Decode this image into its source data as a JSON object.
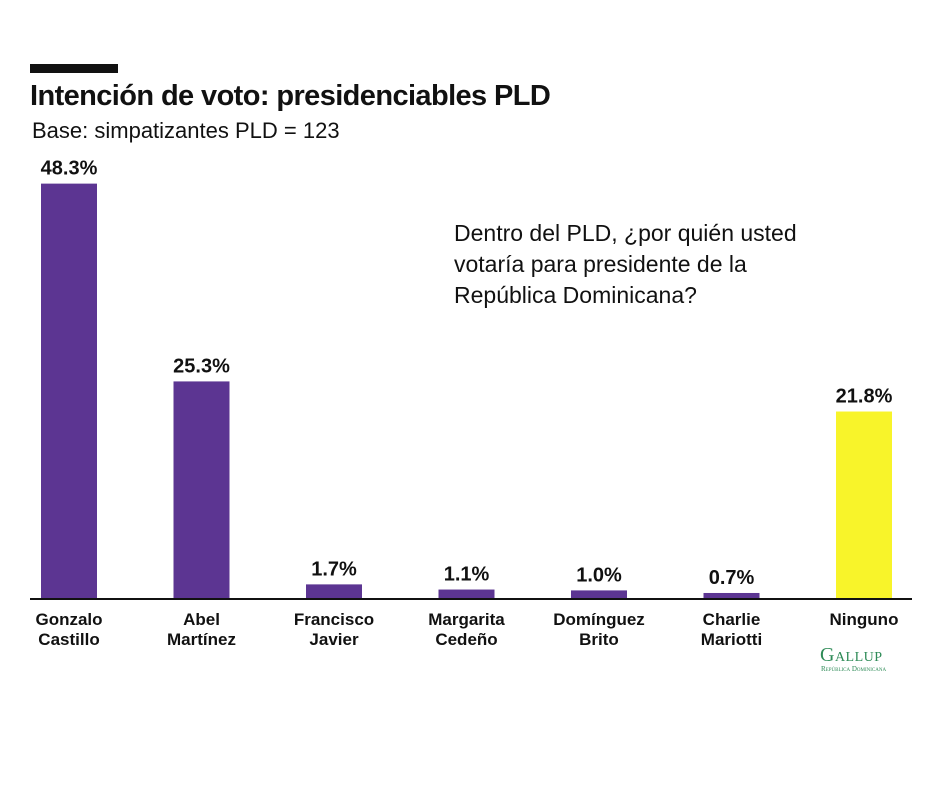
{
  "header": {
    "title": "Intención de voto: presidenciables PLD",
    "subtitle": "Base: simpatizantes PLD = 123"
  },
  "question": {
    "lines": [
      "Dentro del PLD, ¿por quién usted",
      "votaría para presidente de la",
      "República Dominicana?"
    ]
  },
  "logo": {
    "name": "Gallup",
    "subtitle": "República Dominicana",
    "color": "#2e8b57"
  },
  "colors": {
    "candidate_bar": "#5c3592",
    "none_bar": "#f8f42a"
  },
  "chart_data": {
    "type": "bar",
    "title": "Intención de voto: presidenciables PLD",
    "subtitle": "Base: simpatizantes PLD = 123",
    "xlabel": "",
    "ylabel": "",
    "ylim": [
      0,
      50
    ],
    "grid": false,
    "legend": "none",
    "unit": "%",
    "categories": [
      [
        "Gonzalo",
        "Castillo"
      ],
      [
        "Abel",
        "Martínez"
      ],
      [
        "Francisco",
        "Javier"
      ],
      [
        "Margarita",
        "Cedeño"
      ],
      [
        "Domínguez",
        "Brito"
      ],
      [
        "Charlie",
        "Mariotti"
      ],
      [
        "Ninguno"
      ]
    ],
    "values": [
      48.3,
      25.3,
      1.7,
      1.1,
      1.0,
      0.7,
      21.8
    ],
    "value_labels": [
      "48.3%",
      "25.3%",
      "1.7%",
      "1.1%",
      "1.0%",
      "0.7%",
      "21.8%"
    ],
    "bar_colors": [
      "#5c3592",
      "#5c3592",
      "#5c3592",
      "#5c3592",
      "#5c3592",
      "#5c3592",
      "#f8f42a"
    ]
  }
}
